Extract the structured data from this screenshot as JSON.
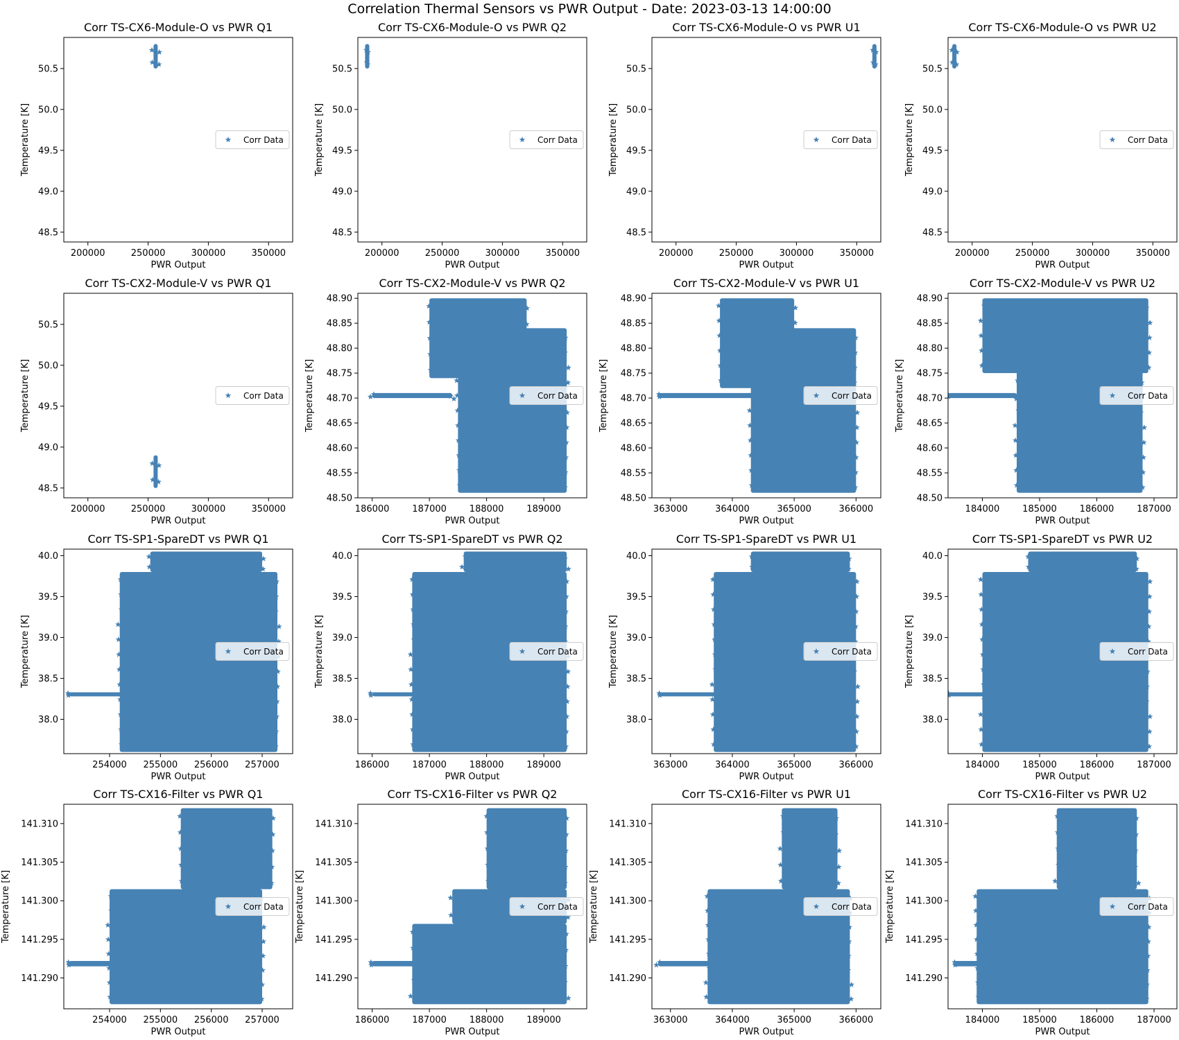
{
  "figure": {
    "suptitle": "Correlation Thermal Sensors vs PWR Output - Date: 2023-03-13 14:00:00"
  },
  "colors": {
    "marker": "#4682b4",
    "axes": "#000000",
    "legend_border": "#cccccc"
  },
  "chart_data": [
    {
      "type": "scatter",
      "title": "Corr TS-CX6-Module-O vs PWR Q1",
      "xlabel": "PWR Output",
      "ylabel": "Temperature [K]",
      "legend": "Corr Data",
      "legend_loc": "center right",
      "marker": "star",
      "xlim": [
        180000,
        370000
      ],
      "ylim": [
        48.38,
        50.88
      ],
      "xticks": [
        200000,
        250000,
        300000,
        350000
      ],
      "yticks": [
        48.5,
        49.0,
        49.5,
        50.0,
        50.5
      ],
      "ytick_decimals": 1,
      "clusters": [
        {
          "x_min": 254500,
          "x_max": 256500,
          "y_min": 50.5,
          "y_max": 50.8
        }
      ]
    },
    {
      "type": "scatter",
      "title": "Corr TS-CX6-Module-O vs PWR Q2",
      "xlabel": "PWR Output",
      "ylabel": "Temperature [K]",
      "legend": "Corr Data",
      "legend_loc": "center right",
      "marker": "star",
      "xlim": [
        180000,
        370000
      ],
      "ylim": [
        48.38,
        50.88
      ],
      "xticks": [
        200000,
        250000,
        300000,
        350000
      ],
      "yticks": [
        48.5,
        49.0,
        49.5,
        50.0,
        50.5
      ],
      "ytick_decimals": 1,
      "clusters": [
        {
          "x_min": 186000,
          "x_max": 189500,
          "y_min": 50.5,
          "y_max": 50.8
        }
      ]
    },
    {
      "type": "scatter",
      "title": "Corr TS-CX6-Module-O vs PWR U1",
      "xlabel": "PWR Output",
      "ylabel": "Temperature [K]",
      "legend": "Corr Data",
      "legend_loc": "center right",
      "marker": "star",
      "xlim": [
        180000,
        370000
      ],
      "ylim": [
        48.38,
        50.88
      ],
      "xticks": [
        200000,
        250000,
        300000,
        350000
      ],
      "yticks": [
        48.5,
        49.0,
        49.5,
        50.0,
        50.5
      ],
      "ytick_decimals": 1,
      "clusters": [
        {
          "x_min": 363000,
          "x_max": 366000,
          "y_min": 50.5,
          "y_max": 50.8
        }
      ]
    },
    {
      "type": "scatter",
      "title": "Corr TS-CX6-Module-O vs PWR U2",
      "xlabel": "PWR Output",
      "ylabel": "Temperature [K]",
      "legend": "Corr Data",
      "legend_loc": "center right",
      "marker": "star",
      "xlim": [
        180000,
        370000
      ],
      "ylim": [
        48.38,
        50.88
      ],
      "xticks": [
        200000,
        250000,
        300000,
        350000
      ],
      "yticks": [
        48.5,
        49.0,
        49.5,
        50.0,
        50.5
      ],
      "ytick_decimals": 1,
      "clusters": [
        {
          "x_min": 183500,
          "x_max": 187000,
          "y_min": 50.5,
          "y_max": 50.8
        }
      ]
    },
    {
      "type": "scatter",
      "title": "Corr TS-CX2-Module-V vs PWR Q1",
      "xlabel": "PWR Output",
      "ylabel": "Temperature [K]",
      "legend": "Corr Data",
      "legend_loc": "center right",
      "marker": "star",
      "xlim": [
        180000,
        370000
      ],
      "ylim": [
        48.38,
        50.88
      ],
      "xticks": [
        200000,
        250000,
        300000,
        350000
      ],
      "yticks": [
        48.5,
        49.0,
        49.5,
        50.0,
        50.5
      ],
      "ytick_decimals": 1,
      "clusters": [
        {
          "x_min": 254500,
          "x_max": 256500,
          "y_min": 48.5,
          "y_max": 48.9
        }
      ]
    },
    {
      "type": "scatter",
      "title": "Corr TS-CX2-Module-V vs PWR Q2",
      "xlabel": "PWR Output",
      "ylabel": "Temperature [K]",
      "legend": "Corr Data",
      "legend_loc": "center right",
      "marker": "star",
      "xlim": [
        185750,
        189750
      ],
      "ylim": [
        48.5,
        48.91
      ],
      "xticks": [
        186000,
        187000,
        188000,
        189000
      ],
      "yticks": [
        48.5,
        48.55,
        48.6,
        48.65,
        48.7,
        48.75,
        48.8,
        48.85,
        48.9
      ],
      "ytick_decimals": 2,
      "clusters": [
        {
          "x_min": 186000,
          "x_max": 187400,
          "y_min": 48.7,
          "y_max": 48.71
        },
        {
          "x_min": 187000,
          "x_max": 188700,
          "y_min": 48.74,
          "y_max": 48.9
        },
        {
          "x_min": 187500,
          "x_max": 189400,
          "y_min": 48.51,
          "y_max": 48.84
        }
      ]
    },
    {
      "type": "scatter",
      "title": "Corr TS-CX2-Module-V vs PWR U1",
      "xlabel": "PWR Output",
      "ylabel": "Temperature [K]",
      "legend": "Corr Data",
      "legend_loc": "center right",
      "marker": "star",
      "xlim": [
        362700,
        366400
      ],
      "ylim": [
        48.5,
        48.91
      ],
      "xticks": [
        363000,
        364000,
        365000,
        366000
      ],
      "yticks": [
        48.5,
        48.55,
        48.6,
        48.65,
        48.7,
        48.75,
        48.8,
        48.85,
        48.9
      ],
      "ytick_decimals": 2,
      "clusters": [
        {
          "x_min": 362800,
          "x_max": 364500,
          "y_min": 48.7,
          "y_max": 48.71
        },
        {
          "x_min": 363800,
          "x_max": 365000,
          "y_min": 48.72,
          "y_max": 48.9
        },
        {
          "x_min": 364300,
          "x_max": 366000,
          "y_min": 48.51,
          "y_max": 48.84
        }
      ]
    },
    {
      "type": "scatter",
      "title": "Corr TS-CX2-Module-V vs PWR U2",
      "xlabel": "PWR Output",
      "ylabel": "Temperature [K]",
      "legend": "Corr Data",
      "legend_loc": "center right",
      "marker": "star",
      "xlim": [
        183400,
        187400
      ],
      "ylim": [
        48.5,
        48.91
      ],
      "xticks": [
        184000,
        185000,
        186000,
        187000
      ],
      "yticks": [
        48.5,
        48.55,
        48.6,
        48.65,
        48.7,
        48.75,
        48.8,
        48.85,
        48.9
      ],
      "ytick_decimals": 2,
      "clusters": [
        {
          "x_min": 183400,
          "x_max": 184600,
          "y_min": 48.7,
          "y_max": 48.71
        },
        {
          "x_min": 184000,
          "x_max": 186900,
          "y_min": 48.75,
          "y_max": 48.9
        },
        {
          "x_min": 184600,
          "x_max": 186800,
          "y_min": 48.51,
          "y_max": 48.84
        }
      ]
    },
    {
      "type": "scatter",
      "title": "Corr TS-SP1-SpareDT vs PWR Q1",
      "xlabel": "PWR Output",
      "ylabel": "Temperature [K]",
      "legend": "Corr Data",
      "legend_loc": "center right",
      "marker": "star",
      "xlim": [
        253100,
        257600
      ],
      "ylim": [
        37.58,
        40.08
      ],
      "xticks": [
        254000,
        255000,
        256000,
        257000
      ],
      "yticks": [
        38.0,
        38.5,
        39.0,
        39.5,
        40.0
      ],
      "ytick_decimals": 1,
      "clusters": [
        {
          "x_min": 253200,
          "x_max": 254500,
          "y_min": 38.28,
          "y_max": 38.33
        },
        {
          "x_min": 254200,
          "x_max": 257300,
          "y_min": 37.6,
          "y_max": 39.8
        },
        {
          "x_min": 254800,
          "x_max": 257000,
          "y_min": 39.8,
          "y_max": 40.05
        }
      ]
    },
    {
      "type": "scatter",
      "title": "Corr TS-SP1-SpareDT vs PWR Q2",
      "xlabel": "PWR Output",
      "ylabel": "Temperature [K]",
      "legend": "Corr Data",
      "legend_loc": "center right",
      "marker": "star",
      "xlim": [
        185750,
        189750
      ],
      "ylim": [
        37.58,
        40.08
      ],
      "xticks": [
        186000,
        187000,
        188000,
        189000
      ],
      "yticks": [
        38.0,
        38.5,
        39.0,
        39.5,
        40.0
      ],
      "ytick_decimals": 1,
      "clusters": [
        {
          "x_min": 186000,
          "x_max": 187000,
          "y_min": 38.28,
          "y_max": 38.33
        },
        {
          "x_min": 186700,
          "x_max": 189400,
          "y_min": 37.6,
          "y_max": 39.8
        },
        {
          "x_min": 187600,
          "x_max": 189400,
          "y_min": 39.8,
          "y_max": 40.05
        }
      ]
    },
    {
      "type": "scatter",
      "title": "Corr TS-SP1-SpareDT vs PWR U1",
      "xlabel": "PWR Output",
      "ylabel": "Temperature [K]",
      "legend": "Corr Data",
      "legend_loc": "center right",
      "marker": "star",
      "xlim": [
        362700,
        366400
      ],
      "ylim": [
        37.58,
        40.08
      ],
      "xticks": [
        363000,
        364000,
        365000,
        366000
      ],
      "yticks": [
        38.0,
        38.5,
        39.0,
        39.5,
        40.0
      ],
      "ytick_decimals": 1,
      "clusters": [
        {
          "x_min": 362800,
          "x_max": 364000,
          "y_min": 38.28,
          "y_max": 38.33
        },
        {
          "x_min": 363700,
          "x_max": 366000,
          "y_min": 37.6,
          "y_max": 39.8
        },
        {
          "x_min": 364300,
          "x_max": 365900,
          "y_min": 39.8,
          "y_max": 40.05
        }
      ]
    },
    {
      "type": "scatter",
      "title": "Corr TS-SP1-SpareDT vs PWR U2",
      "xlabel": "PWR Output",
      "ylabel": "Temperature [K]",
      "legend": "Corr Data",
      "legend_loc": "center right",
      "marker": "star",
      "xlim": [
        183400,
        187400
      ],
      "ylim": [
        37.58,
        40.08
      ],
      "xticks": [
        184000,
        185000,
        186000,
        187000
      ],
      "yticks": [
        38.0,
        38.5,
        39.0,
        39.5,
        40.0
      ],
      "ytick_decimals": 1,
      "clusters": [
        {
          "x_min": 183400,
          "x_max": 184300,
          "y_min": 38.28,
          "y_max": 38.33
        },
        {
          "x_min": 184000,
          "x_max": 186900,
          "y_min": 37.6,
          "y_max": 39.8
        },
        {
          "x_min": 184800,
          "x_max": 186700,
          "y_min": 39.8,
          "y_max": 40.05
        }
      ]
    },
    {
      "type": "scatter",
      "title": "Corr TS-CX16-Filter vs PWR Q1",
      "xlabel": "PWR Output",
      "ylabel": "Temperature [K]",
      "legend": "Corr Data",
      "legend_loc": "center right",
      "marker": "star",
      "xlim": [
        253100,
        257600
      ],
      "ylim": [
        141.286,
        141.3125
      ],
      "xticks": [
        254000,
        255000,
        256000,
        257000
      ],
      "yticks": [
        141.29,
        141.295,
        141.3,
        141.305,
        141.31
      ],
      "ytick_decimals": 3,
      "clusters": [
        {
          "x_min": 253200,
          "x_max": 254500,
          "y_min": 141.2915,
          "y_max": 141.2922
        },
        {
          "x_min": 254000,
          "x_max": 257000,
          "y_min": 141.2866,
          "y_max": 141.3015
        },
        {
          "x_min": 255400,
          "x_max": 257200,
          "y_min": 141.3015,
          "y_max": 141.312
        }
      ]
    },
    {
      "type": "scatter",
      "title": "Corr TS-CX16-Filter vs PWR Q2",
      "xlabel": "PWR Output",
      "ylabel": "Temperature [K]",
      "legend": "Corr Data",
      "legend_loc": "center right",
      "marker": "star",
      "xlim": [
        185750,
        189750
      ],
      "ylim": [
        141.286,
        141.3125
      ],
      "xticks": [
        186000,
        187000,
        188000,
        189000
      ],
      "yticks": [
        141.29,
        141.295,
        141.3,
        141.305,
        141.31
      ],
      "ytick_decimals": 3,
      "clusters": [
        {
          "x_min": 186000,
          "x_max": 186900,
          "y_min": 141.2915,
          "y_max": 141.2922
        },
        {
          "x_min": 186700,
          "x_max": 189400,
          "y_min": 141.2866,
          "y_max": 141.297
        },
        {
          "x_min": 187400,
          "x_max": 189400,
          "y_min": 141.297,
          "y_max": 141.3015
        },
        {
          "x_min": 188000,
          "x_max": 189400,
          "y_min": 141.3015,
          "y_max": 141.312
        }
      ]
    },
    {
      "type": "scatter",
      "title": "Corr TS-CX16-Filter vs PWR U1",
      "xlabel": "PWR Output",
      "ylabel": "Temperature [K]",
      "legend": "Corr Data",
      "legend_loc": "center right",
      "marker": "star",
      "xlim": [
        362700,
        366400
      ],
      "ylim": [
        141.286,
        141.3125
      ],
      "xticks": [
        363000,
        364000,
        365000,
        366000
      ],
      "yticks": [
        141.29,
        141.295,
        141.3,
        141.305,
        141.31
      ],
      "ytick_decimals": 3,
      "clusters": [
        {
          "x_min": 362800,
          "x_max": 364000,
          "y_min": 141.2915,
          "y_max": 141.2922
        },
        {
          "x_min": 363600,
          "x_max": 365900,
          "y_min": 141.2866,
          "y_max": 141.3015
        },
        {
          "x_min": 364800,
          "x_max": 365700,
          "y_min": 141.3015,
          "y_max": 141.312
        }
      ]
    },
    {
      "type": "scatter",
      "title": "Corr TS-CX16-Filter vs PWR U2",
      "xlabel": "PWR Output",
      "ylabel": "Temperature [K]",
      "legend": "Corr Data",
      "legend_loc": "center right",
      "marker": "star",
      "xlim": [
        183400,
        187400
      ],
      "ylim": [
        141.286,
        141.3125
      ],
      "xticks": [
        184000,
        185000,
        186000,
        187000
      ],
      "yticks": [
        141.29,
        141.295,
        141.3,
        141.305,
        141.31
      ],
      "ytick_decimals": 3,
      "clusters": [
        {
          "x_min": 183500,
          "x_max": 184600,
          "y_min": 141.2915,
          "y_max": 141.2922
        },
        {
          "x_min": 183900,
          "x_max": 186900,
          "y_min": 141.2866,
          "y_max": 141.3015
        },
        {
          "x_min": 185300,
          "x_max": 186700,
          "y_min": 141.3015,
          "y_max": 141.312
        }
      ]
    }
  ]
}
